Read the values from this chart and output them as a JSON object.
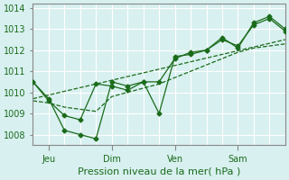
{
  "title": "",
  "xlabel": "Pression niveau de la mer( hPa )",
  "ylabel": "",
  "bg_color": "#d8f0f0",
  "grid_color": "#ffffff",
  "line_color": "#1a6b1a",
  "xlim": [
    0,
    96
  ],
  "ylim": [
    1007.5,
    1014.2
  ],
  "yticks": [
    1008,
    1009,
    1010,
    1011,
    1012,
    1013,
    1014
  ],
  "xtick_positions": [
    6,
    30,
    54,
    78
  ],
  "xtick_labels": [
    "Jeu",
    "Dim",
    "Ven",
    "Sam"
  ],
  "series1": {
    "x": [
      0,
      6,
      12,
      18,
      24,
      30,
      36,
      42,
      48,
      54,
      60,
      66,
      72,
      78,
      84,
      90,
      96
    ],
    "y": [
      1010.5,
      1009.7,
      1008.2,
      1008.0,
      1007.8,
      1010.5,
      1010.3,
      1010.5,
      1009.0,
      1011.7,
      1011.8,
      1012.0,
      1012.6,
      1012.1,
      1013.3,
      1013.6,
      1013.0
    ]
  },
  "series2": {
    "x": [
      0,
      6,
      12,
      18,
      24,
      30,
      36,
      42,
      48,
      54,
      60,
      66,
      72,
      78,
      84,
      90,
      96
    ],
    "y": [
      1010.5,
      1009.6,
      1008.9,
      1008.7,
      1010.4,
      1010.3,
      1010.1,
      1010.5,
      1010.5,
      1011.6,
      1011.9,
      1012.0,
      1012.5,
      1012.2,
      1013.2,
      1013.5,
      1012.9
    ]
  },
  "series3": {
    "x": [
      0,
      96
    ],
    "y": [
      1009.7,
      1012.5
    ]
  },
  "series4": {
    "x": [
      0,
      6,
      12,
      18,
      24,
      30,
      36,
      42,
      48,
      54,
      60,
      66,
      72,
      78,
      84,
      90,
      96
    ],
    "y": [
      1009.6,
      1009.5,
      1009.3,
      1009.2,
      1009.1,
      1009.8,
      1010.0,
      1010.2,
      1010.4,
      1010.7,
      1011.0,
      1011.3,
      1011.6,
      1011.9,
      1012.1,
      1012.2,
      1012.3
    ]
  }
}
